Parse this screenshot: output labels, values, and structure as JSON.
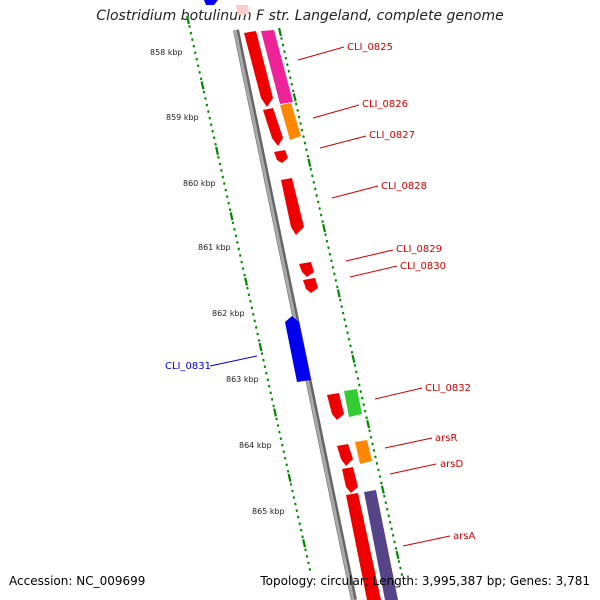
{
  "title": "Clostridium botulinum F str. Langeland, complete genome",
  "footer": {
    "accession": "Accession: NC_009699",
    "summary": "Topology: circular; Length: 3,995,387 bp; Genes: 3,781"
  },
  "ticks": [
    {
      "label": "858 kbp"
    },
    {
      "label": "859 kbp"
    },
    {
      "label": "860 kbp"
    },
    {
      "label": "861 kbp"
    },
    {
      "label": "862 kbp"
    },
    {
      "label": "863 kbp"
    },
    {
      "label": "864 kbp"
    },
    {
      "label": "865 kbp"
    }
  ],
  "gene_labels": [
    {
      "text": "CLI_0825",
      "color": "#cc0000"
    },
    {
      "text": "CLI_0826",
      "color": "#cc0000"
    },
    {
      "text": "CLI_0827",
      "color": "#cc0000"
    },
    {
      "text": "CLI_0828",
      "color": "#cc0000"
    },
    {
      "text": "CLI_0829",
      "color": "#cc0000"
    },
    {
      "text": "CLI_0830",
      "color": "#cc0000"
    },
    {
      "text": "CLI_0831",
      "color": "#0000cc"
    },
    {
      "text": "CLI_0832",
      "color": "#cc0000"
    },
    {
      "text": "arsR",
      "color": "#cc0000"
    },
    {
      "text": "arsD",
      "color": "#cc0000"
    },
    {
      "text": "arsA",
      "color": "#cc0000"
    }
  ],
  "colors": {
    "forward_gene": "#ff0000",
    "reverse_gene": "#0000ff",
    "cog_magenta": "#ee22aa",
    "cog_orange": "#ff8800",
    "cog_green": "#33cc33",
    "cog_purple": "#554488",
    "backbone": "#888888",
    "tick_green": "#008800"
  }
}
